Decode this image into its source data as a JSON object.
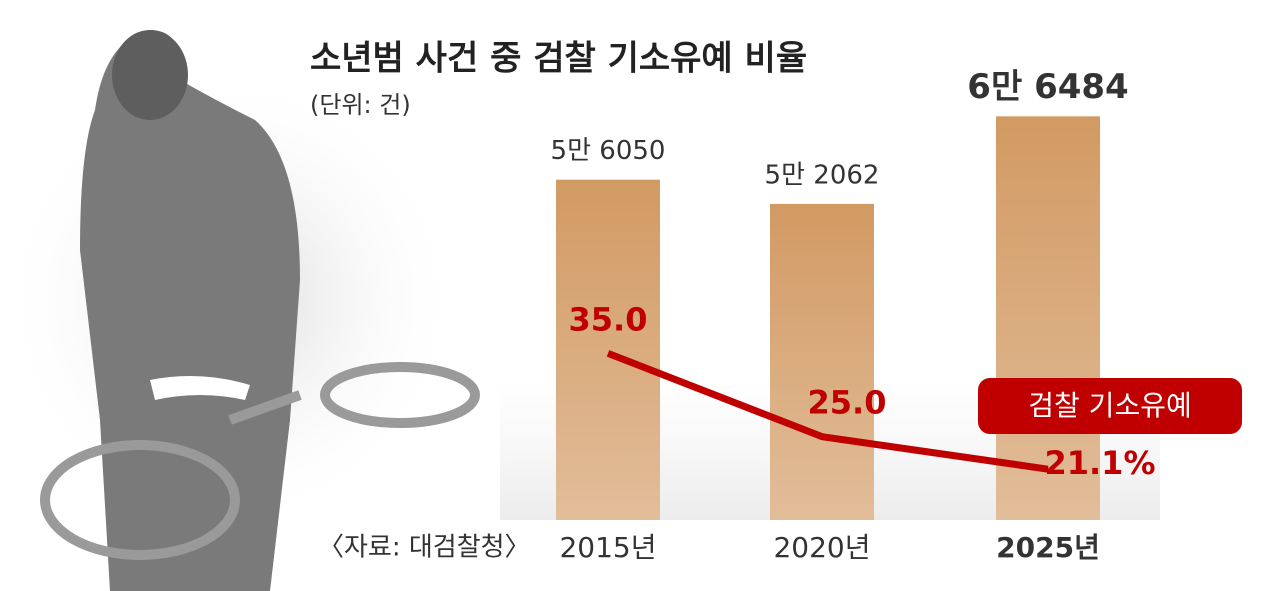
{
  "chart_data": {
    "type": "bar",
    "title": "소년범 사건 중 검찰 기소유예 비율",
    "subtitle": "(단위: 건)",
    "source": "〈자료: 대검찰청〉",
    "categories": [
      "2015년",
      "2020년",
      "2025년"
    ],
    "series": [
      {
        "type": "bar",
        "color": "#d29a63",
        "values": [
          56050,
          52062,
          66484
        ],
        "value_labels": [
          "5만 6050",
          "5만 2062",
          "6만 6484"
        ]
      },
      {
        "type": "line",
        "name": "검찰 기소유예",
        "color": "#c00000",
        "axis": "y2",
        "values": [
          35.0,
          25.0,
          21.1
        ],
        "value_labels": [
          "35.0",
          "25.0",
          "21.1%"
        ]
      }
    ],
    "ylim": [
      0,
      70000
    ],
    "y2lim": [
      15,
      66
    ]
  }
}
